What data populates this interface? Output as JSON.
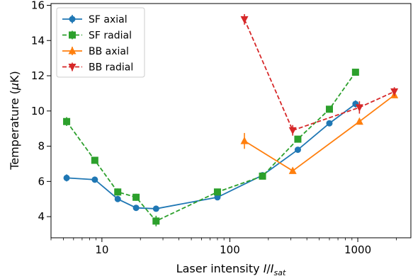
{
  "chart_data": {
    "type": "line",
    "title": "",
    "xlabel": "Laser intensity I/I_sat",
    "xlabel_parts": {
      "main": "Laser intensity ",
      "i1": "I",
      "slash": "/",
      "i2": "I",
      "sub": "sat"
    },
    "ylabel": "Temperature (μK)",
    "ylabel_parts": {
      "pre": "Temperature (",
      "mu": "μ",
      "post": "K)"
    },
    "x_scale": "log",
    "xlim": [
      4,
      2600
    ],
    "ylim": [
      2.8,
      16.1
    ],
    "x_ticks": [
      10,
      100,
      1000
    ],
    "x_tick_labels": [
      "10",
      "100",
      "1000"
    ],
    "y_ticks": [
      4,
      6,
      8,
      10,
      12,
      14,
      16
    ],
    "y_tick_labels": [
      "4",
      "6",
      "8",
      "10",
      "12",
      "14",
      "16"
    ],
    "grid": false,
    "legend_position": "top-left",
    "series": [
      {
        "name": "SF axial",
        "color": "#1f77b4",
        "line_style": "solid",
        "marker": "circle",
        "x": [
          5.3,
          8.8,
          13.3,
          18.5,
          26.5,
          80,
          180,
          340,
          600,
          960
        ],
        "y": [
          6.2,
          6.1,
          5.0,
          4.5,
          4.45,
          5.1,
          6.35,
          7.8,
          9.3,
          10.4
        ],
        "yerr": [
          0.2,
          0.1,
          0.1,
          0.1,
          0.1,
          0.1,
          0.1,
          0.1,
          0.1,
          0.2
        ]
      },
      {
        "name": "SF radial",
        "color": "#2ca02c",
        "line_style": "dashed",
        "marker": "square",
        "x": [
          5.3,
          8.8,
          13.3,
          18.5,
          26.5,
          80,
          180,
          340,
          600,
          960
        ],
        "y": [
          9.4,
          7.2,
          5.4,
          5.1,
          3.75,
          5.4,
          6.3,
          8.4,
          10.1,
          12.2
        ],
        "yerr": [
          0.25,
          0.2,
          0.2,
          0.2,
          0.3,
          0.15,
          0.15,
          0.15,
          0.15,
          0.1
        ]
      },
      {
        "name": "BB axial",
        "color": "#ff7f0e",
        "line_style": "solid",
        "marker": "triangle-up",
        "x": [
          130,
          310,
          1030,
          1930
        ],
        "y": [
          8.3,
          6.6,
          9.4,
          10.9
        ],
        "yerr": [
          0.45,
          0.1,
          0.1,
          0.1
        ]
      },
      {
        "name": "BB radial",
        "color": "#d62728",
        "line_style": "dashed",
        "marker": "triangle-down",
        "x": [
          130,
          310,
          1030,
          1930
        ],
        "y": [
          15.2,
          8.9,
          10.2,
          11.1
        ],
        "yerr": [
          0.3,
          0.3,
          0.35,
          0.25
        ]
      }
    ]
  }
}
